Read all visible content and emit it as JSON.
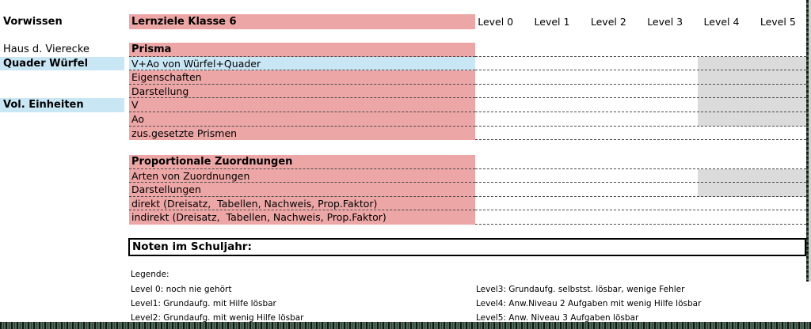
{
  "colors": {
    "pink": "#eda6a6",
    "blue": "#c9e6f5",
    "gray": "#dbdbdb",
    "selection_green": "#50695a"
  },
  "header": {
    "left_label": "Vorwissen",
    "title": "Lernziele Klasse 6",
    "levels": [
      "Level 0",
      "Level 1",
      "Level 2",
      "Level 3",
      "Level 4",
      "Level 5"
    ]
  },
  "block1": {
    "rows": [
      {
        "left": "Haus d. Vierecke",
        "text": "Prisma",
        "bold": true
      },
      {
        "left": "Quader Würfel",
        "left_bold": true,
        "left_highlight": "blue",
        "text": "V+Ao von Würfel+Quader",
        "highlight": "blue",
        "levels_shaded": true
      },
      {
        "text": "Eigenschaften",
        "levels_shaded": true
      },
      {
        "text": "Darstellung",
        "levels_shaded": true
      },
      {
        "left": "Vol. Einheiten",
        "left_bold": true,
        "left_highlight": "blue",
        "text": "V",
        "levels_shaded": true
      },
      {
        "text": "Ao",
        "levels_shaded": true
      },
      {
        "text": "zus.gesetzte Prismen"
      }
    ],
    "gray_region": {
      "columns": [
        "Level 4",
        "Level 5"
      ],
      "rows": [
        "V+Ao von Würfel+Quader",
        "Eigenschaften",
        "Darstellung",
        "V",
        "Ao"
      ]
    }
  },
  "block2": {
    "rows": [
      {
        "text": "Proportionale Zuordnungen",
        "bold": true
      },
      {
        "text": "Arten von Zuordnungen",
        "levels_shaded": true
      },
      {
        "text": "Darstellungen",
        "levels_shaded": true
      },
      {
        "text": "direkt (Dreisatz,  Tabellen, Nachweis, Prop.Faktor)"
      },
      {
        "text": "indirekt (Dreisatz,  Tabellen, Nachweis, Prop.Faktor)"
      }
    ],
    "gray_region": {
      "columns": [
        "Level 4",
        "Level 5"
      ],
      "rows": [
        "Arten von Zuordnungen",
        "Darstellungen"
      ]
    }
  },
  "noten": {
    "label": "Noten im Schuljahr:"
  },
  "legend": {
    "title": "Legende:",
    "left": [
      "Level 0: noch nie gehört",
      "Level1: Grundaufg. mit Hilfe lösbar",
      "Level2: Grundaufg. mit wenig Hilfe lösbar"
    ],
    "right": [
      "Level3: Grundaufg. selbstst. lösbar, wenige Fehler",
      "Level4: Anw.Niveau 2 Aufgaben mit wenig Hilfe lösbar",
      "Level5: Anw. Niveau 3 Aufgaben lösbar"
    ]
  }
}
